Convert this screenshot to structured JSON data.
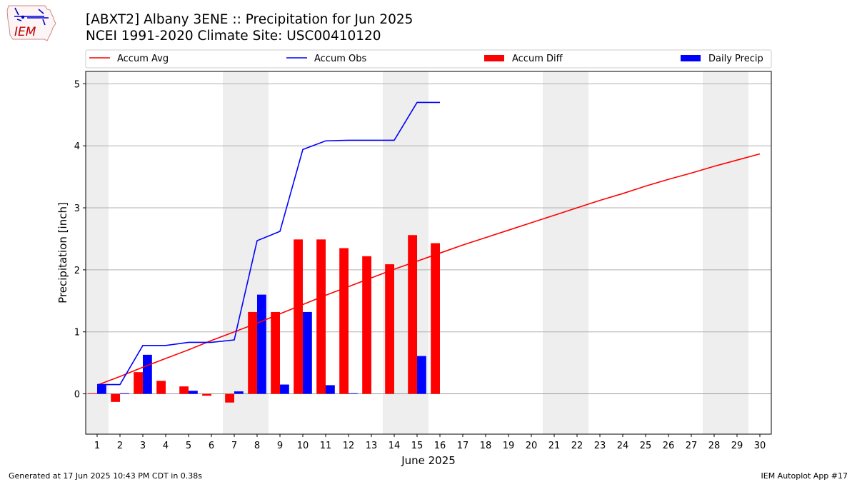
{
  "page": {
    "title_line1": "[ABXT2] Albany 3ENE :: Precipitation for Jun 2025",
    "title_line2": "NCEI 1991-2020 Climate Site: USC00410120",
    "footer_left": "Generated at 17 Jun 2025 10:43 PM CDT in 0.38s",
    "footer_right": "IEM Autoplot App #17",
    "logo_text": "IEM"
  },
  "chart_data": {
    "type": "bar",
    "xlabel": "June 2025",
    "ylabel": "Precipitation [inch]",
    "xlim": [
      0.5,
      30.5
    ],
    "ylim": [
      -0.65,
      5.2
    ],
    "yticks": [
      0,
      1,
      2,
      3,
      4,
      5
    ],
    "xticks": [
      1,
      2,
      3,
      4,
      5,
      6,
      7,
      8,
      9,
      10,
      11,
      12,
      13,
      14,
      15,
      16,
      17,
      18,
      19,
      20,
      21,
      22,
      23,
      24,
      25,
      26,
      27,
      28,
      29,
      30
    ],
    "grid": "horizontal",
    "legend": "top (above plot)",
    "weekend_shading": [
      [
        0.5,
        1.5
      ],
      [
        6.5,
        8.5
      ],
      [
        13.5,
        15.5
      ],
      [
        20.5,
        22.5
      ],
      [
        27.5,
        29.5
      ]
    ],
    "colors": {
      "accum_avg": "#ff0000",
      "accum_obs": "#0000ff",
      "accum_diff": "#ff0000",
      "daily_precip": "#0000ff",
      "weekend": "#eeeeee"
    },
    "series": [
      {
        "name": "Accum Avg",
        "kind": "line",
        "x": [
          1,
          2,
          3,
          4,
          5,
          6,
          7,
          8,
          9,
          10,
          11,
          12,
          13,
          14,
          15,
          16,
          17,
          18,
          19,
          20,
          21,
          22,
          23,
          24,
          25,
          26,
          27,
          28,
          29,
          30
        ],
        "values": [
          0.14,
          0.28,
          0.43,
          0.57,
          0.71,
          0.86,
          1.0,
          1.14,
          1.29,
          1.44,
          1.59,
          1.73,
          1.87,
          2.01,
          2.14,
          2.27,
          2.4,
          2.52,
          2.64,
          2.76,
          2.88,
          3.0,
          3.12,
          3.23,
          3.35,
          3.46,
          3.56,
          3.67,
          3.77,
          3.87
        ]
      },
      {
        "name": "Accum Obs",
        "kind": "line",
        "x": [
          1,
          2,
          3,
          4,
          5,
          6,
          7,
          8,
          9,
          10,
          11,
          12,
          13,
          14,
          15,
          16
        ],
        "values": [
          0.15,
          0.15,
          0.78,
          0.78,
          0.83,
          0.83,
          0.87,
          2.47,
          2.62,
          3.94,
          4.08,
          4.09,
          4.09,
          4.09,
          4.7,
          4.7
        ]
      },
      {
        "name": "Accum Diff",
        "kind": "bar",
        "x": [
          1,
          2,
          3,
          4,
          5,
          6,
          7,
          8,
          9,
          10,
          11,
          12,
          13,
          14,
          15,
          16
        ],
        "values": [
          0.01,
          -0.13,
          0.35,
          0.21,
          0.12,
          -0.03,
          -0.14,
          1.32,
          1.32,
          2.49,
          2.49,
          2.35,
          2.22,
          2.09,
          2.56,
          2.43
        ]
      },
      {
        "name": "Daily Precip",
        "kind": "bar",
        "x": [
          1,
          2,
          3,
          4,
          5,
          6,
          7,
          8,
          9,
          10,
          11,
          12,
          13,
          14,
          15,
          16
        ],
        "values": [
          0.15,
          0.01,
          0.63,
          0,
          0.05,
          0,
          0.04,
          1.6,
          0.15,
          1.32,
          0.14,
          0.01,
          0,
          0,
          0.61,
          0
        ]
      }
    ]
  }
}
